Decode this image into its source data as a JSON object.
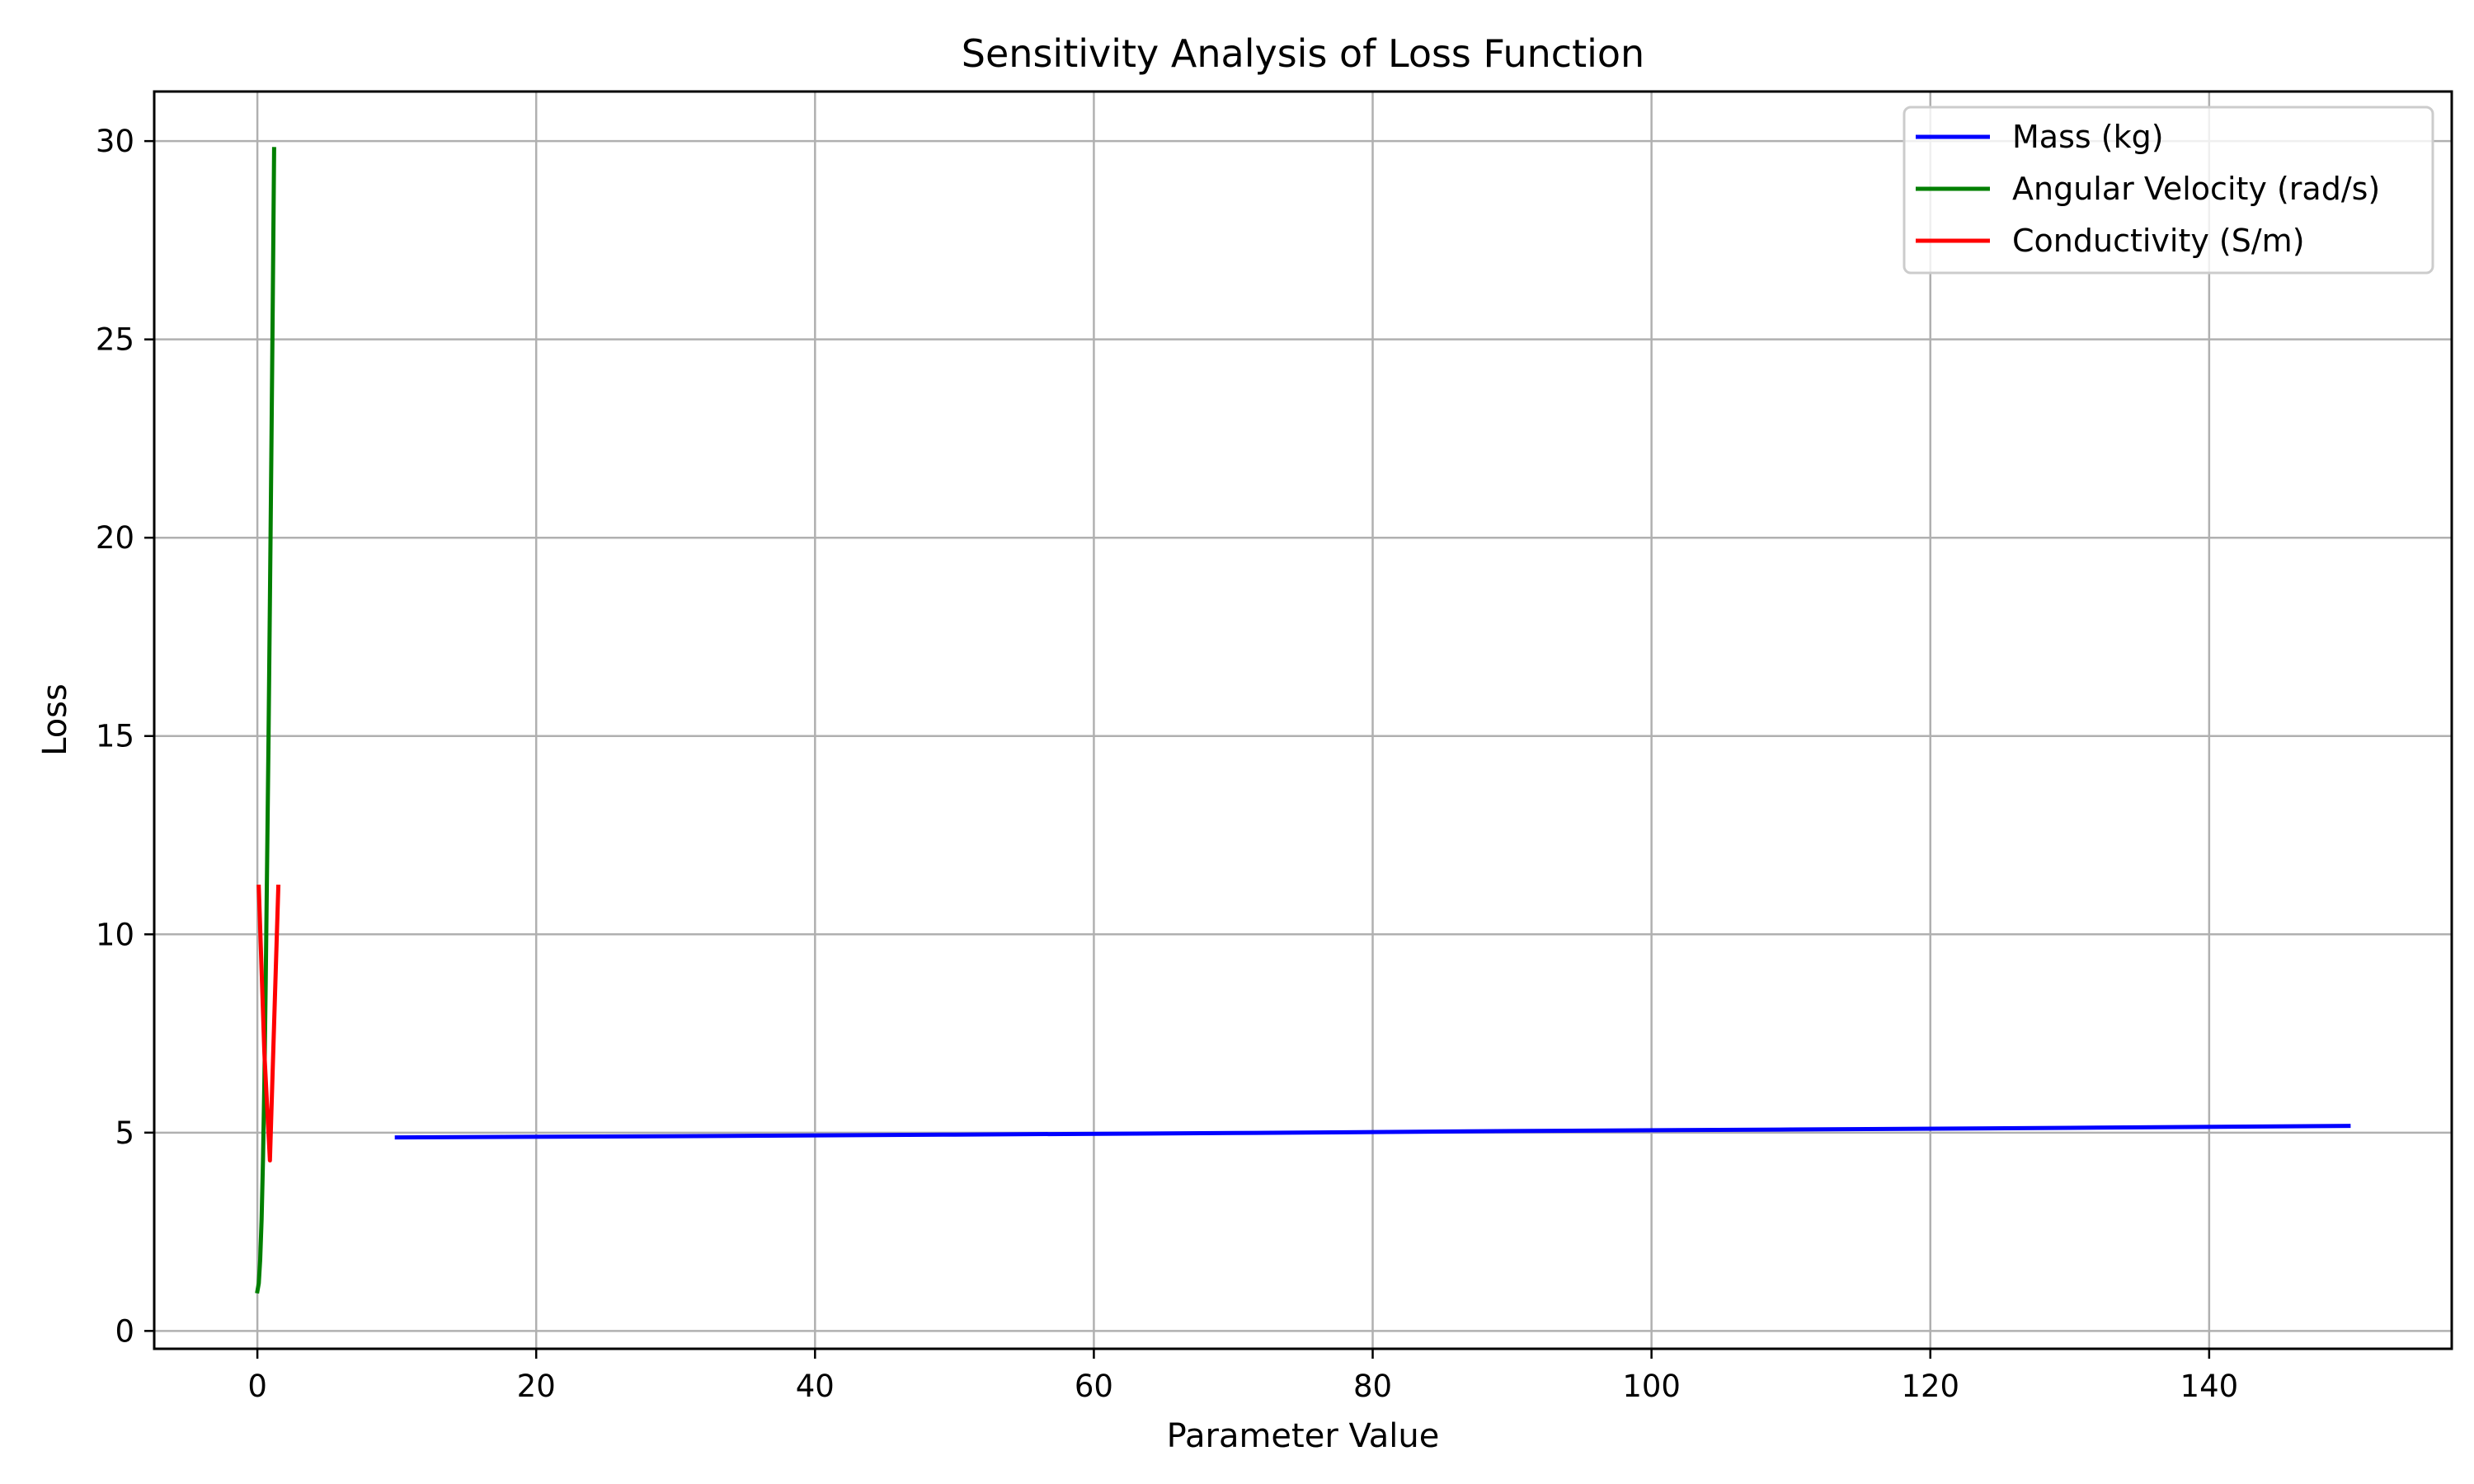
{
  "chart_data": {
    "type": "line",
    "title": "Sensitivity Analysis of Loss Function",
    "xlabel": "Parameter Value",
    "ylabel": "Loss",
    "xlim": [
      -7.4,
      157.4
    ],
    "ylim": [
      -0.45,
      31.25
    ],
    "xticks": [
      0,
      20,
      40,
      60,
      80,
      100,
      120,
      140
    ],
    "yticks": [
      0,
      5,
      10,
      15,
      20,
      25,
      30
    ],
    "grid": true,
    "legend_position": "top-right",
    "series": [
      {
        "name": "Mass (kg)",
        "color": "#0000ff",
        "x": [
          10,
          30,
          50,
          70,
          90,
          110,
          130,
          150
        ],
        "y": [
          4.88,
          4.91,
          4.95,
          4.99,
          5.04,
          5.08,
          5.12,
          5.17
        ]
      },
      {
        "name": "Angular Velocity (rad/s)",
        "color": "#007f00",
        "x": [
          0,
          0.1,
          0.2,
          0.3,
          0.4,
          0.5,
          0.6,
          0.7,
          0.8,
          0.9,
          1.0,
          1.1,
          1.2
        ],
        "y": [
          1.0,
          1.2,
          1.8,
          2.8,
          4.3,
          6.3,
          8.8,
          11.8,
          14.9,
          18.4,
          22.0,
          25.8,
          29.8
        ]
      },
      {
        "name": "Conductivity (S/m)",
        "color": "#ff0000",
        "x": [
          0.1,
          0.5,
          0.9,
          1.5
        ],
        "y": [
          11.2,
          7.0,
          4.3,
          11.2
        ]
      }
    ]
  }
}
